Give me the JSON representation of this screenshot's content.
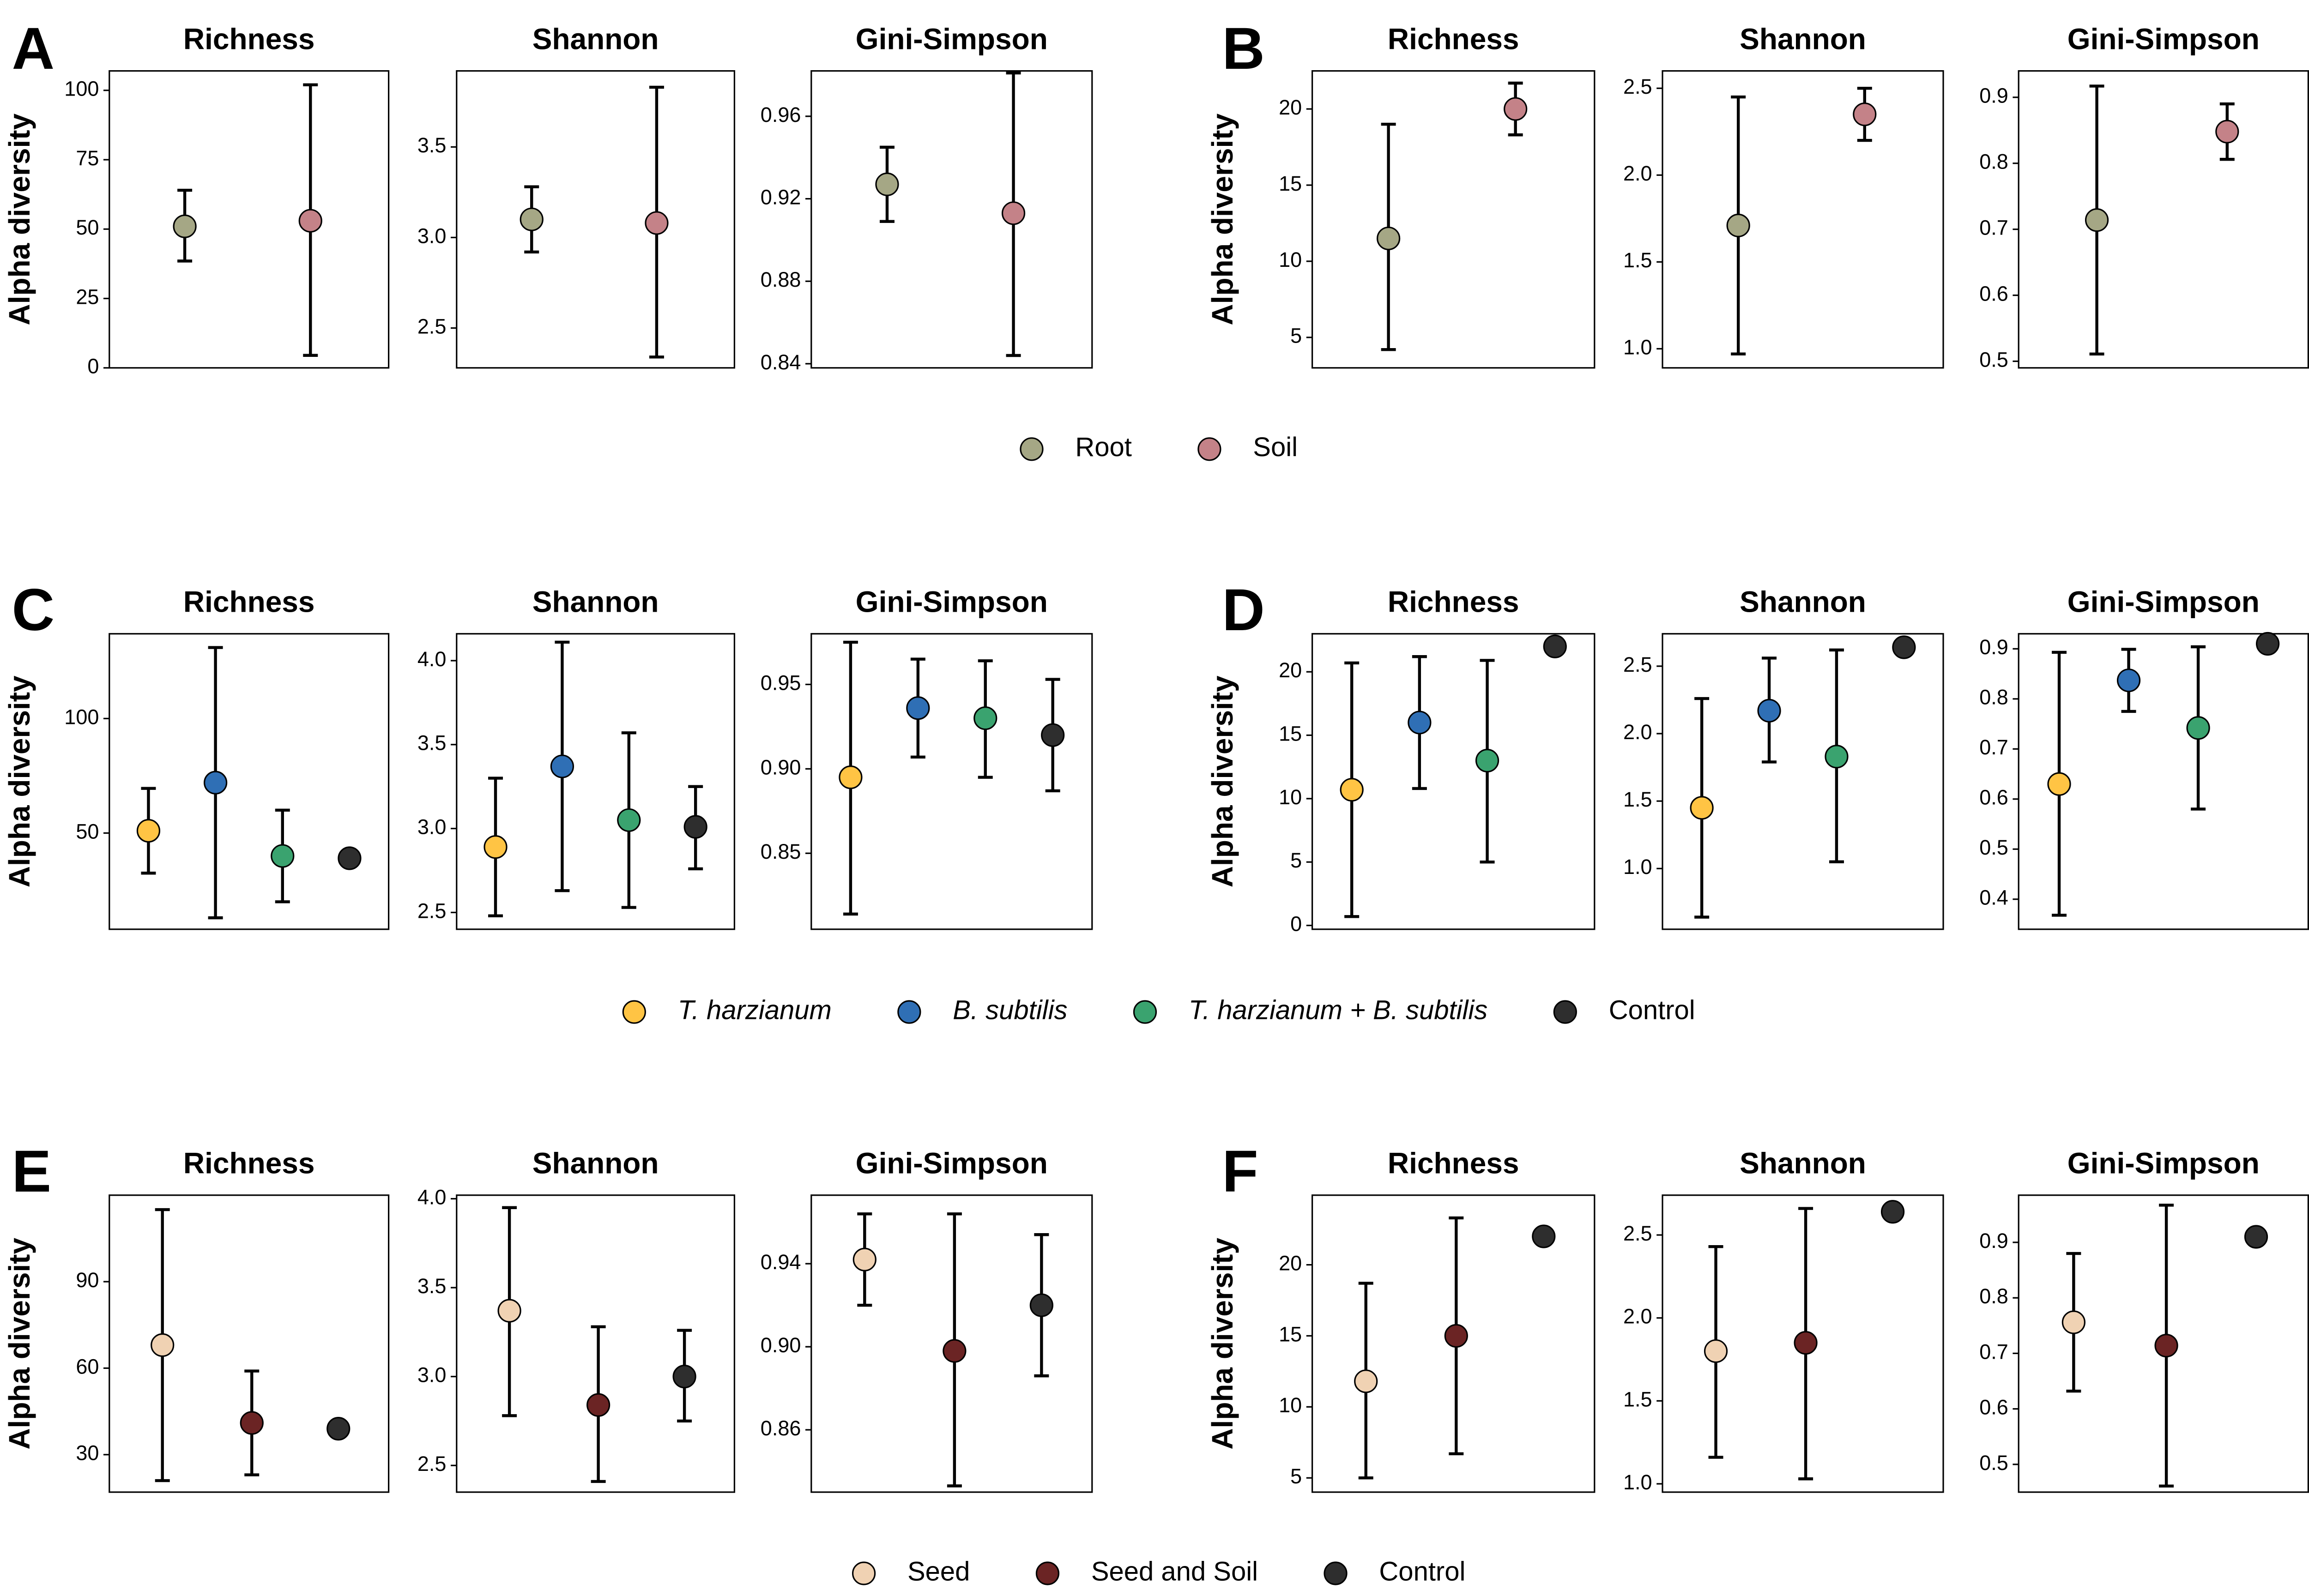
{
  "colors": {
    "Root": "#a5a785",
    "Soil": "#c48288",
    "T. harzianum": "#ffc444",
    "B. subtilis": "#2f6fb5",
    "T. harzianum + B. subtilis": "#3aa36f",
    "Control": "#2e2e2e",
    "Seed": "#f0d2b3",
    "Seed and Soil": "#6b2424"
  },
  "legends": [
    {
      "id": "legend-1",
      "items": [
        {
          "label": "Root",
          "color": "#a5a785",
          "italic": false
        },
        {
          "label": "Soil",
          "color": "#c48288",
          "italic": false
        }
      ]
    },
    {
      "id": "legend-2",
      "items": [
        {
          "label": "T. harzianum",
          "color": "#ffc444",
          "italic": true
        },
        {
          "label": "B. subtilis",
          "color": "#2f6fb5",
          "italic": true
        },
        {
          "label": "T. harzianum + B. subtilis",
          "color": "#3aa36f",
          "italic": true
        },
        {
          "label": "Control",
          "color": "#2e2e2e",
          "italic": false
        }
      ]
    },
    {
      "id": "legend-3",
      "items": [
        {
          "label": "Seed",
          "color": "#f0d2b3",
          "italic": false
        },
        {
          "label": "Seed and Soil",
          "color": "#6b2424",
          "italic": false
        },
        {
          "label": "Control",
          "color": "#2e2e2e",
          "italic": false
        }
      ]
    }
  ],
  "chart_data": [
    {
      "panel": "A",
      "ylabel": "Alpha diversity",
      "subplots": [
        {
          "title": "Richness",
          "type": "scatter",
          "ylim": [
            0,
            107
          ],
          "yticks": [
            0,
            25,
            50,
            75,
            100
          ],
          "tick_labels": [
            "0",
            "25",
            "50",
            "75",
            "100"
          ],
          "points": [
            {
              "group": "Root",
              "mean": 51,
              "lower": 38.5,
              "upper": 64
            },
            {
              "group": "Soil",
              "mean": 53,
              "lower": 4.5,
              "upper": 102
            }
          ]
        },
        {
          "title": "Shannon",
          "type": "scatter",
          "ylim": [
            2.28,
            3.92
          ],
          "yticks": [
            2.5,
            3.0,
            3.5
          ],
          "tick_labels": [
            "2.5",
            "3.0",
            "3.5"
          ],
          "points": [
            {
              "group": "Root",
              "mean": 3.1,
              "lower": 2.92,
              "upper": 3.28
            },
            {
              "group": "Soil",
              "mean": 3.08,
              "lower": 2.34,
              "upper": 3.83
            }
          ]
        },
        {
          "title": "Gini-Simpson",
          "type": "scatter",
          "ylim": [
            0.838,
            0.982
          ],
          "yticks": [
            0.84,
            0.88,
            0.92,
            0.96
          ],
          "tick_labels": [
            "0.84",
            "0.88",
            "0.92",
            "0.96"
          ],
          "points": [
            {
              "group": "Root",
              "mean": 0.927,
              "lower": 0.909,
              "upper": 0.945
            },
            {
              "group": "Soil",
              "mean": 0.913,
              "lower": 0.844,
              "upper": 0.981
            }
          ]
        }
      ]
    },
    {
      "panel": "B",
      "ylabel": "Alpha diversity",
      "subplots": [
        {
          "title": "Richness",
          "type": "scatter",
          "ylim": [
            3,
            22.5
          ],
          "yticks": [
            5,
            10,
            15,
            20
          ],
          "tick_labels": [
            "5",
            "10",
            "15",
            "20"
          ],
          "points": [
            {
              "group": "Root",
              "mean": 11.5,
              "lower": 4.2,
              "upper": 19
            },
            {
              "group": "Soil",
              "mean": 20,
              "lower": 18.3,
              "upper": 21.7
            }
          ]
        },
        {
          "title": "Shannon",
          "type": "scatter",
          "ylim": [
            0.89,
            2.6
          ],
          "yticks": [
            1.0,
            1.5,
            2.0,
            2.5
          ],
          "tick_labels": [
            "1.0",
            "1.5",
            "2.0",
            "2.5"
          ],
          "points": [
            {
              "group": "Root",
              "mean": 1.71,
              "lower": 0.97,
              "upper": 2.45
            },
            {
              "group": "Soil",
              "mean": 2.35,
              "lower": 2.2,
              "upper": 2.5
            }
          ]
        },
        {
          "title": "Gini-Simpson",
          "type": "scatter",
          "ylim": [
            0.49,
            0.94
          ],
          "yticks": [
            0.5,
            0.6,
            0.7,
            0.8,
            0.9
          ],
          "tick_labels": [
            "0.5",
            "0.6",
            "0.7",
            "0.8",
            "0.9"
          ],
          "points": [
            {
              "group": "Root",
              "mean": 0.714,
              "lower": 0.511,
              "upper": 0.917
            },
            {
              "group": "Soil",
              "mean": 0.848,
              "lower": 0.806,
              "upper": 0.89
            }
          ]
        }
      ]
    },
    {
      "panel": "C",
      "ylabel": "Alpha diversity",
      "subplots": [
        {
          "title": "Richness",
          "type": "scatter",
          "ylim": [
            8,
            137
          ],
          "yticks": [
            50,
            100
          ],
          "tick_labels": [
            "50",
            "100"
          ],
          "points": [
            {
              "group": "T. harzianum",
              "mean": 51,
              "lower": 32.5,
              "upper": 69.5
            },
            {
              "group": "B. subtilis",
              "mean": 72,
              "lower": 13,
              "upper": 131
            },
            {
              "group": "T. harzianum + B. subtilis",
              "mean": 40,
              "lower": 20,
              "upper": 60
            },
            {
              "group": "Control",
              "mean": 39,
              "lower": null,
              "upper": null
            }
          ]
        },
        {
          "title": "Shannon",
          "type": "scatter",
          "ylim": [
            2.4,
            4.16
          ],
          "yticks": [
            2.5,
            3.0,
            3.5,
            4.0
          ],
          "tick_labels": [
            "2.5",
            "3.0",
            "3.5",
            "4.0"
          ],
          "points": [
            {
              "group": "T. harzianum",
              "mean": 2.89,
              "lower": 2.48,
              "upper": 3.3
            },
            {
              "group": "B. subtilis",
              "mean": 3.37,
              "lower": 2.63,
              "upper": 4.11
            },
            {
              "group": "T. harzianum + B. subtilis",
              "mean": 3.05,
              "lower": 2.53,
              "upper": 3.57
            },
            {
              "group": "Control",
              "mean": 3.01,
              "lower": 2.76,
              "upper": 3.25
            }
          ]
        },
        {
          "title": "Gini-Simpson",
          "type": "scatter",
          "ylim": [
            0.805,
            0.98
          ],
          "yticks": [
            0.85,
            0.9,
            0.95
          ],
          "tick_labels": [
            "0.85",
            "0.90",
            "0.95"
          ],
          "points": [
            {
              "group": "T. harzianum",
              "mean": 0.895,
              "lower": 0.814,
              "upper": 0.975
            },
            {
              "group": "B. subtilis",
              "mean": 0.936,
              "lower": 0.907,
              "upper": 0.965
            },
            {
              "group": "T. harzianum + B. subtilis",
              "mean": 0.93,
              "lower": 0.895,
              "upper": 0.964
            },
            {
              "group": "Control",
              "mean": 0.92,
              "lower": 0.887,
              "upper": 0.953
            }
          ]
        }
      ]
    },
    {
      "panel": "D",
      "ylabel": "Alpha diversity",
      "subplots": [
        {
          "title": "Richness",
          "type": "scatter",
          "ylim": [
            -0.3,
            23
          ],
          "yticks": [
            0,
            5,
            10,
            15,
            20
          ],
          "tick_labels": [
            "0",
            "5",
            "10",
            "15",
            "20"
          ],
          "points": [
            {
              "group": "T. harzianum",
              "mean": 10.7,
              "lower": 0.7,
              "upper": 20.7
            },
            {
              "group": "B. subtilis",
              "mean": 16,
              "lower": 10.8,
              "upper": 21.2
            },
            {
              "group": "T. harzianum + B. subtilis",
              "mean": 13,
              "lower": 5,
              "upper": 20.9
            },
            {
              "group": "Control",
              "mean": 22,
              "lower": null,
              "upper": null
            }
          ]
        },
        {
          "title": "Shannon",
          "type": "scatter",
          "ylim": [
            0.55,
            2.74
          ],
          "yticks": [
            1.0,
            1.5,
            2.0,
            2.5
          ],
          "tick_labels": [
            "1.0",
            "1.5",
            "2.0",
            "2.5"
          ],
          "points": [
            {
              "group": "T. harzianum",
              "mean": 1.45,
              "lower": 0.64,
              "upper": 2.26
            },
            {
              "group": "B. subtilis",
              "mean": 2.17,
              "lower": 1.79,
              "upper": 2.56
            },
            {
              "group": "T. harzianum + B. subtilis",
              "mean": 1.83,
              "lower": 1.05,
              "upper": 2.62
            },
            {
              "group": "Control",
              "mean": 2.64,
              "lower": null,
              "upper": null
            }
          ]
        },
        {
          "title": "Gini-Simpson",
          "type": "scatter",
          "ylim": [
            0.34,
            0.93
          ],
          "yticks": [
            0.4,
            0.5,
            0.6,
            0.7,
            0.8,
            0.9
          ],
          "tick_labels": [
            "0.4",
            "0.5",
            "0.6",
            "0.7",
            "0.8",
            "0.9"
          ],
          "points": [
            {
              "group": "T. harzianum",
              "mean": 0.63,
              "lower": 0.368,
              "upper": 0.893
            },
            {
              "group": "B. subtilis",
              "mean": 0.837,
              "lower": 0.775,
              "upper": 0.899
            },
            {
              "group": "T. harzianum + B. subtilis",
              "mean": 0.742,
              "lower": 0.58,
              "upper": 0.904
            },
            {
              "group": "Control",
              "mean": 0.91,
              "lower": null,
              "upper": null
            }
          ]
        }
      ]
    },
    {
      "panel": "E",
      "ylabel": "Alpha diversity",
      "subplots": [
        {
          "title": "Richness",
          "type": "scatter",
          "ylim": [
            17,
            120
          ],
          "yticks": [
            30,
            60,
            90
          ],
          "tick_labels": [
            "30",
            "60",
            "90"
          ],
          "points": [
            {
              "group": "Seed",
              "mean": 68,
              "lower": 21,
              "upper": 115
            },
            {
              "group": "Seed and Soil",
              "mean": 41,
              "lower": 23,
              "upper": 59
            },
            {
              "group": "Control",
              "mean": 39,
              "lower": null,
              "upper": null
            }
          ]
        },
        {
          "title": "Shannon",
          "type": "scatter",
          "ylim": [
            2.35,
            4.02
          ],
          "yticks": [
            2.5,
            3.0,
            3.5,
            4.0
          ],
          "tick_labels": [
            "2.5",
            "3.0",
            "3.5",
            "4.0"
          ],
          "points": [
            {
              "group": "Seed",
              "mean": 3.37,
              "lower": 2.78,
              "upper": 3.95
            },
            {
              "group": "Seed and Soil",
              "mean": 2.84,
              "lower": 2.41,
              "upper": 3.28
            },
            {
              "group": "Control",
              "mean": 3.0,
              "lower": 2.75,
              "upper": 3.26
            }
          ]
        },
        {
          "title": "Gini-Simpson",
          "type": "scatter",
          "ylim": [
            0.83,
            0.973
          ],
          "yticks": [
            0.86,
            0.9,
            0.94
          ],
          "tick_labels": [
            "0.86",
            "0.90",
            "0.94"
          ],
          "points": [
            {
              "group": "Seed",
              "mean": 0.942,
              "lower": 0.92,
              "upper": 0.964
            },
            {
              "group": "Seed and Soil",
              "mean": 0.898,
              "lower": 0.833,
              "upper": 0.964
            },
            {
              "group": "Control",
              "mean": 0.92,
              "lower": 0.886,
              "upper": 0.954
            }
          ]
        }
      ]
    },
    {
      "panel": "F",
      "ylabel": "Alpha diversity",
      "subplots": [
        {
          "title": "Richness",
          "type": "scatter",
          "ylim": [
            4,
            24.9
          ],
          "yticks": [
            5,
            10,
            15,
            20
          ],
          "tick_labels": [
            "5",
            "10",
            "15",
            "20"
          ],
          "points": [
            {
              "group": "Seed",
              "mean": 11.8,
              "lower": 5,
              "upper": 18.7
            },
            {
              "group": "Seed and Soil",
              "mean": 15,
              "lower": 6.7,
              "upper": 23.3
            },
            {
              "group": "Control",
              "mean": 22,
              "lower": null,
              "upper": null
            }
          ]
        },
        {
          "title": "Shannon",
          "type": "scatter",
          "ylim": [
            0.95,
            2.74
          ],
          "yticks": [
            1.0,
            1.5,
            2.0,
            2.5
          ],
          "tick_labels": [
            "1.0",
            "1.5",
            "2.0",
            "2.5"
          ],
          "points": [
            {
              "group": "Seed",
              "mean": 1.8,
              "lower": 1.16,
              "upper": 2.43
            },
            {
              "group": "Seed and Soil",
              "mean": 1.85,
              "lower": 1.03,
              "upper": 2.66
            },
            {
              "group": "Control",
              "mean": 2.64,
              "lower": null,
              "upper": null
            }
          ]
        },
        {
          "title": "Gini-Simpson",
          "type": "scatter",
          "ylim": [
            0.45,
            0.985
          ],
          "yticks": [
            0.5,
            0.6,
            0.7,
            0.8,
            0.9
          ],
          "tick_labels": [
            "0.5",
            "0.6",
            "0.7",
            "0.8",
            "0.9"
          ],
          "points": [
            {
              "group": "Seed",
              "mean": 0.756,
              "lower": 0.632,
              "upper": 0.88
            },
            {
              "group": "Seed and Soil",
              "mean": 0.714,
              "lower": 0.461,
              "upper": 0.967
            },
            {
              "group": "Control",
              "mean": 0.91,
              "lower": null,
              "upper": null
            }
          ]
        }
      ]
    }
  ]
}
